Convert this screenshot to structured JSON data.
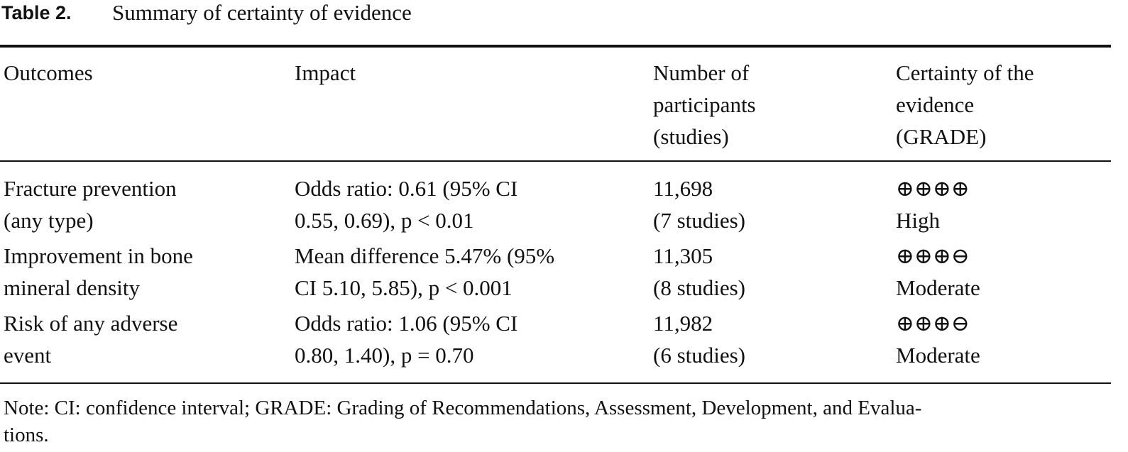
{
  "title": {
    "label": "Table 2.",
    "text": "Summary of certainty of evidence"
  },
  "table": {
    "header": [
      [
        "Outcomes"
      ],
      [
        "Impact"
      ],
      [
        "Number of",
        "participants",
        "(studies)"
      ],
      [
        "Certainty of the",
        "evidence",
        "(GRADE)"
      ]
    ],
    "rows": [
      [
        [
          "Fracture prevention",
          "(any type)"
        ],
        [
          "Odds ratio: 0.61 (95% CI",
          "0.55, 0.69), p < 0.01"
        ],
        [
          "11,698",
          "(7 studies)"
        ],
        [
          "⊕⊕⊕⊕",
          "High"
        ]
      ],
      [
        [
          "Improvement in bone",
          "mineral density"
        ],
        [
          "Mean difference 5.47% (95%",
          "CI 5.10, 5.85), p < 0.001"
        ],
        [
          "11,305",
          "(8 studies)"
        ],
        [
          "⊕⊕⊕⊖",
          "Moderate"
        ]
      ],
      [
        [
          "Risk of any adverse",
          "event"
        ],
        [
          "Odds ratio: 1.06 (95% CI",
          "0.80, 1.40), p = 0.70"
        ],
        [
          "11,982",
          "(6 studies)"
        ],
        [
          "⊕⊕⊕⊖",
          "Moderate"
        ]
      ]
    ]
  },
  "note": [
    "Note: CI: confidence interval; GRADE: Grading of Recommendations, Assessment, Development, and Evalua-",
    "tions."
  ]
}
